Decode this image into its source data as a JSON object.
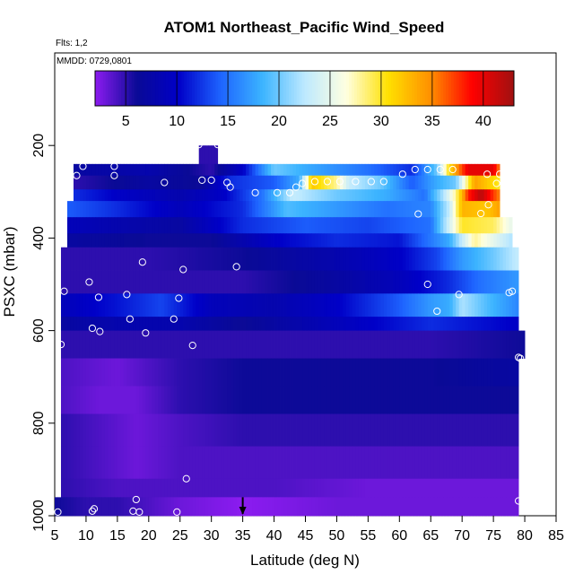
{
  "chart_data": {
    "type": "heatmap",
    "title": "ATOM1 Northeast_Pacific Wind_Speed",
    "annotations": {
      "flights": "Flts: 1,2",
      "dates": "MMDD: 0729,0801"
    },
    "xlabel": "Latitude (deg N)",
    "ylabel": "PSXC (mbar)",
    "xlim": [
      5,
      85
    ],
    "ylim": [
      1000,
      0
    ],
    "x_ticks": [
      5,
      10,
      15,
      20,
      25,
      30,
      35,
      40,
      45,
      50,
      55,
      60,
      65,
      70,
      75,
      80,
      85
    ],
    "y_ticks": [
      200,
      400,
      600,
      800,
      1000
    ],
    "colorbar": {
      "range": [
        2,
        43
      ],
      "ticks": [
        5,
        10,
        15,
        20,
        25,
        30,
        35,
        40
      ],
      "colors": [
        "#8c1cf0",
        "#0a0a96",
        "#0000c8",
        "#1e64ff",
        "#3cb4ff",
        "#bde9ff",
        "#ffffe0",
        "#ffe000",
        "#ff9000",
        "#ff0000",
        "#a01010"
      ]
    },
    "marker_latitude": 35,
    "pressure_levels": [
      {
        "p_top": 200,
        "p_bot": 240,
        "lat_min": 28,
        "lat_max": 31,
        "wind_knots": [
          [
            28,
            5
          ],
          [
            31,
            5
          ]
        ]
      },
      {
        "p_top": 240,
        "p_bot": 265,
        "lat_min": 8,
        "lat_max": 76,
        "wind_knots": [
          [
            8,
            7
          ],
          [
            20,
            8
          ],
          [
            30,
            5
          ],
          [
            35,
            10
          ],
          [
            40,
            20
          ],
          [
            45,
            18
          ],
          [
            55,
            15
          ],
          [
            62,
            12
          ],
          [
            66,
            20
          ],
          [
            68,
            31
          ],
          [
            71,
            40
          ],
          [
            75,
            40
          ],
          [
            76,
            35
          ]
        ]
      },
      {
        "p_top": 265,
        "p_bot": 295,
        "lat_min": 8,
        "lat_max": 76,
        "wind_knots": [
          [
            8,
            5
          ],
          [
            20,
            7
          ],
          [
            28,
            6
          ],
          [
            33,
            12
          ],
          [
            40,
            14
          ],
          [
            44,
            18
          ],
          [
            46,
            32
          ],
          [
            50,
            28
          ],
          [
            52,
            23
          ],
          [
            57,
            20
          ],
          [
            62,
            14
          ],
          [
            66,
            18
          ],
          [
            69,
            20
          ],
          [
            72,
            34
          ],
          [
            76,
            30
          ]
        ]
      },
      {
        "p_top": 295,
        "p_bot": 320,
        "lat_min": 8,
        "lat_max": 76,
        "wind_knots": [
          [
            8,
            12
          ],
          [
            15,
            10
          ],
          [
            25,
            8
          ],
          [
            32,
            10
          ],
          [
            38,
            15
          ],
          [
            43,
            23
          ],
          [
            50,
            20
          ],
          [
            58,
            18
          ],
          [
            64,
            15
          ],
          [
            67,
            22
          ],
          [
            69,
            28
          ],
          [
            71,
            38
          ],
          [
            73,
            42
          ],
          [
            76,
            35
          ]
        ]
      },
      {
        "p_top": 320,
        "p_bot": 355,
        "lat_min": 7,
        "lat_max": 76,
        "wind_knots": [
          [
            7,
            14
          ],
          [
            15,
            12
          ],
          [
            25,
            9
          ],
          [
            35,
            12
          ],
          [
            42,
            19
          ],
          [
            50,
            17
          ],
          [
            58,
            15
          ],
          [
            65,
            16
          ],
          [
            68,
            23
          ],
          [
            70,
            33
          ],
          [
            74,
            32
          ],
          [
            76,
            34
          ]
        ]
      },
      {
        "p_top": 355,
        "p_bot": 390,
        "lat_min": 7,
        "lat_max": 78,
        "wind_knots": [
          [
            7,
            9
          ],
          [
            15,
            8
          ],
          [
            25,
            7
          ],
          [
            35,
            12
          ],
          [
            45,
            14
          ],
          [
            55,
            13
          ],
          [
            65,
            15
          ],
          [
            70,
            30
          ],
          [
            75,
            29
          ],
          [
            78,
            25
          ]
        ]
      },
      {
        "p_top": 390,
        "p_bot": 420,
        "lat_min": 7,
        "lat_max": 78,
        "wind_knots": [
          [
            7,
            7
          ],
          [
            20,
            6
          ],
          [
            30,
            6
          ],
          [
            40,
            10
          ],
          [
            50,
            12
          ],
          [
            60,
            11
          ],
          [
            68,
            18
          ],
          [
            72,
            28
          ],
          [
            78,
            22
          ]
        ]
      },
      {
        "p_top": 420,
        "p_bot": 470,
        "lat_min": 6,
        "lat_max": 79,
        "wind_knots": [
          [
            6,
            5
          ],
          [
            20,
            5
          ],
          [
            35,
            6
          ],
          [
            50,
            8
          ],
          [
            60,
            10
          ],
          [
            66,
            13
          ],
          [
            70,
            17
          ],
          [
            75,
            20
          ],
          [
            79,
            23
          ]
        ]
      },
      {
        "p_top": 470,
        "p_bot": 520,
        "lat_min": 6,
        "lat_max": 79,
        "wind_knots": [
          [
            6,
            5
          ],
          [
            20,
            5
          ],
          [
            35,
            5
          ],
          [
            50,
            7
          ],
          [
            60,
            9
          ],
          [
            68,
            12
          ],
          [
            73,
            15
          ],
          [
            79,
            17
          ]
        ]
      },
      {
        "p_top": 520,
        "p_bot": 570,
        "lat_min": 6,
        "lat_max": 79,
        "wind_knots": [
          [
            6,
            9
          ],
          [
            15,
            11
          ],
          [
            22,
            13
          ],
          [
            30,
            9
          ],
          [
            40,
            8
          ],
          [
            50,
            10
          ],
          [
            60,
            14
          ],
          [
            65,
            17
          ],
          [
            68,
            18
          ],
          [
            70,
            22
          ],
          [
            74,
            19
          ],
          [
            79,
            16
          ]
        ]
      },
      {
        "p_top": 570,
        "p_bot": 600,
        "lat_min": 6,
        "lat_max": 79,
        "wind_knots": [
          [
            6,
            7
          ],
          [
            15,
            8
          ],
          [
            25,
            8
          ],
          [
            35,
            6
          ],
          [
            45,
            8
          ],
          [
            55,
            10
          ],
          [
            65,
            12
          ],
          [
            72,
            11
          ],
          [
            79,
            10
          ]
        ]
      },
      {
        "p_top": 600,
        "p_bot": 660,
        "lat_min": 6,
        "lat_max": 80,
        "wind_knots": [
          [
            6,
            5
          ],
          [
            20,
            5
          ],
          [
            35,
            5
          ],
          [
            50,
            5
          ],
          [
            65,
            5
          ],
          [
            80,
            6
          ]
        ]
      },
      {
        "p_top": 660,
        "p_bot": 720,
        "lat_min": 6,
        "lat_max": 79,
        "wind_knots": [
          [
            6,
            4
          ],
          [
            15,
            3
          ],
          [
            25,
            5
          ],
          [
            35,
            6
          ],
          [
            50,
            6
          ],
          [
            65,
            6
          ],
          [
            79,
            7
          ]
        ]
      },
      {
        "p_top": 720,
        "p_bot": 780,
        "lat_min": 6,
        "lat_max": 79,
        "wind_knots": [
          [
            6,
            4
          ],
          [
            12,
            3
          ],
          [
            18,
            3
          ],
          [
            25,
            5
          ],
          [
            35,
            6
          ],
          [
            50,
            6
          ],
          [
            65,
            6
          ],
          [
            79,
            6
          ]
        ]
      },
      {
        "p_top": 780,
        "p_bot": 850,
        "lat_min": 6,
        "lat_max": 79,
        "wind_knots": [
          [
            6,
            5
          ],
          [
            12,
            4
          ],
          [
            18,
            3
          ],
          [
            25,
            4
          ],
          [
            35,
            5
          ],
          [
            50,
            5
          ],
          [
            65,
            5
          ],
          [
            79,
            5
          ]
        ]
      },
      {
        "p_top": 850,
        "p_bot": 920,
        "lat_min": 6,
        "lat_max": 79,
        "wind_knots": [
          [
            6,
            5
          ],
          [
            12,
            4
          ],
          [
            18,
            3
          ],
          [
            25,
            4
          ],
          [
            35,
            4
          ],
          [
            50,
            4
          ],
          [
            65,
            4
          ],
          [
            79,
            4
          ]
        ]
      },
      {
        "p_top": 920,
        "p_bot": 960,
        "lat_min": 6,
        "lat_max": 79,
        "wind_knots": [
          [
            6,
            5
          ],
          [
            15,
            4
          ],
          [
            25,
            4
          ],
          [
            40,
            4
          ],
          [
            55,
            3
          ],
          [
            70,
            3
          ],
          [
            79,
            3
          ]
        ]
      },
      {
        "p_top": 960,
        "p_bot": 1010,
        "lat_min": 5,
        "lat_max": 79,
        "wind_knots": [
          [
            5,
            6
          ],
          [
            10,
            5
          ],
          [
            15,
            5
          ],
          [
            20,
            4
          ],
          [
            25,
            3
          ],
          [
            35,
            2
          ],
          [
            50,
            3
          ],
          [
            65,
            3
          ],
          [
            79,
            3
          ]
        ]
      }
    ],
    "sample_points": [
      [
        5.5,
        992
      ],
      [
        6,
        630
      ],
      [
        6.5,
        515
      ],
      [
        8.5,
        265
      ],
      [
        9.5,
        245
      ],
      [
        10.5,
        495
      ],
      [
        11,
        595
      ],
      [
        11,
        990
      ],
      [
        11.3,
        985
      ],
      [
        12,
        528
      ],
      [
        12.2,
        602
      ],
      [
        14.5,
        245
      ],
      [
        14.5,
        265
      ],
      [
        16.5,
        522
      ],
      [
        17,
        575
      ],
      [
        17.5,
        990
      ],
      [
        18,
        965
      ],
      [
        18.5,
        992
      ],
      [
        19,
        452
      ],
      [
        19.5,
        605
      ],
      [
        21,
        222
      ],
      [
        22.5,
        280
      ],
      [
        24,
        575
      ],
      [
        24.5,
        992
      ],
      [
        24.8,
        530
      ],
      [
        25.5,
        468
      ],
      [
        26,
        920
      ],
      [
        27,
        632
      ],
      [
        28,
        198
      ],
      [
        28.5,
        275
      ],
      [
        30,
        275
      ],
      [
        31,
        198
      ],
      [
        32.5,
        280
      ],
      [
        33,
        290
      ],
      [
        34,
        462
      ],
      [
        37,
        302
      ],
      [
        40.5,
        302
      ],
      [
        42.5,
        302
      ],
      [
        43.5,
        290
      ],
      [
        44.5,
        282
      ],
      [
        46.5,
        278
      ],
      [
        48.5,
        278
      ],
      [
        50.5,
        278
      ],
      [
        53,
        278
      ],
      [
        55.5,
        278
      ],
      [
        57.5,
        278
      ],
      [
        60.5,
        262
      ],
      [
        62.5,
        252
      ],
      [
        63,
        348
      ],
      [
        64.5,
        252
      ],
      [
        64.5,
        500
      ],
      [
        66,
        558
      ],
      [
        66.5,
        252
      ],
      [
        67.5,
        222
      ],
      [
        68.5,
        252
      ],
      [
        69.5,
        522
      ],
      [
        73,
        347
      ],
      [
        74,
        262
      ],
      [
        74.2,
        328
      ],
      [
        75.5,
        282
      ],
      [
        76,
        262
      ],
      [
        77.5,
        518
      ],
      [
        78,
        515
      ],
      [
        79,
        658
      ],
      [
        79.3,
        660
      ],
      [
        79,
        968
      ]
    ]
  }
}
